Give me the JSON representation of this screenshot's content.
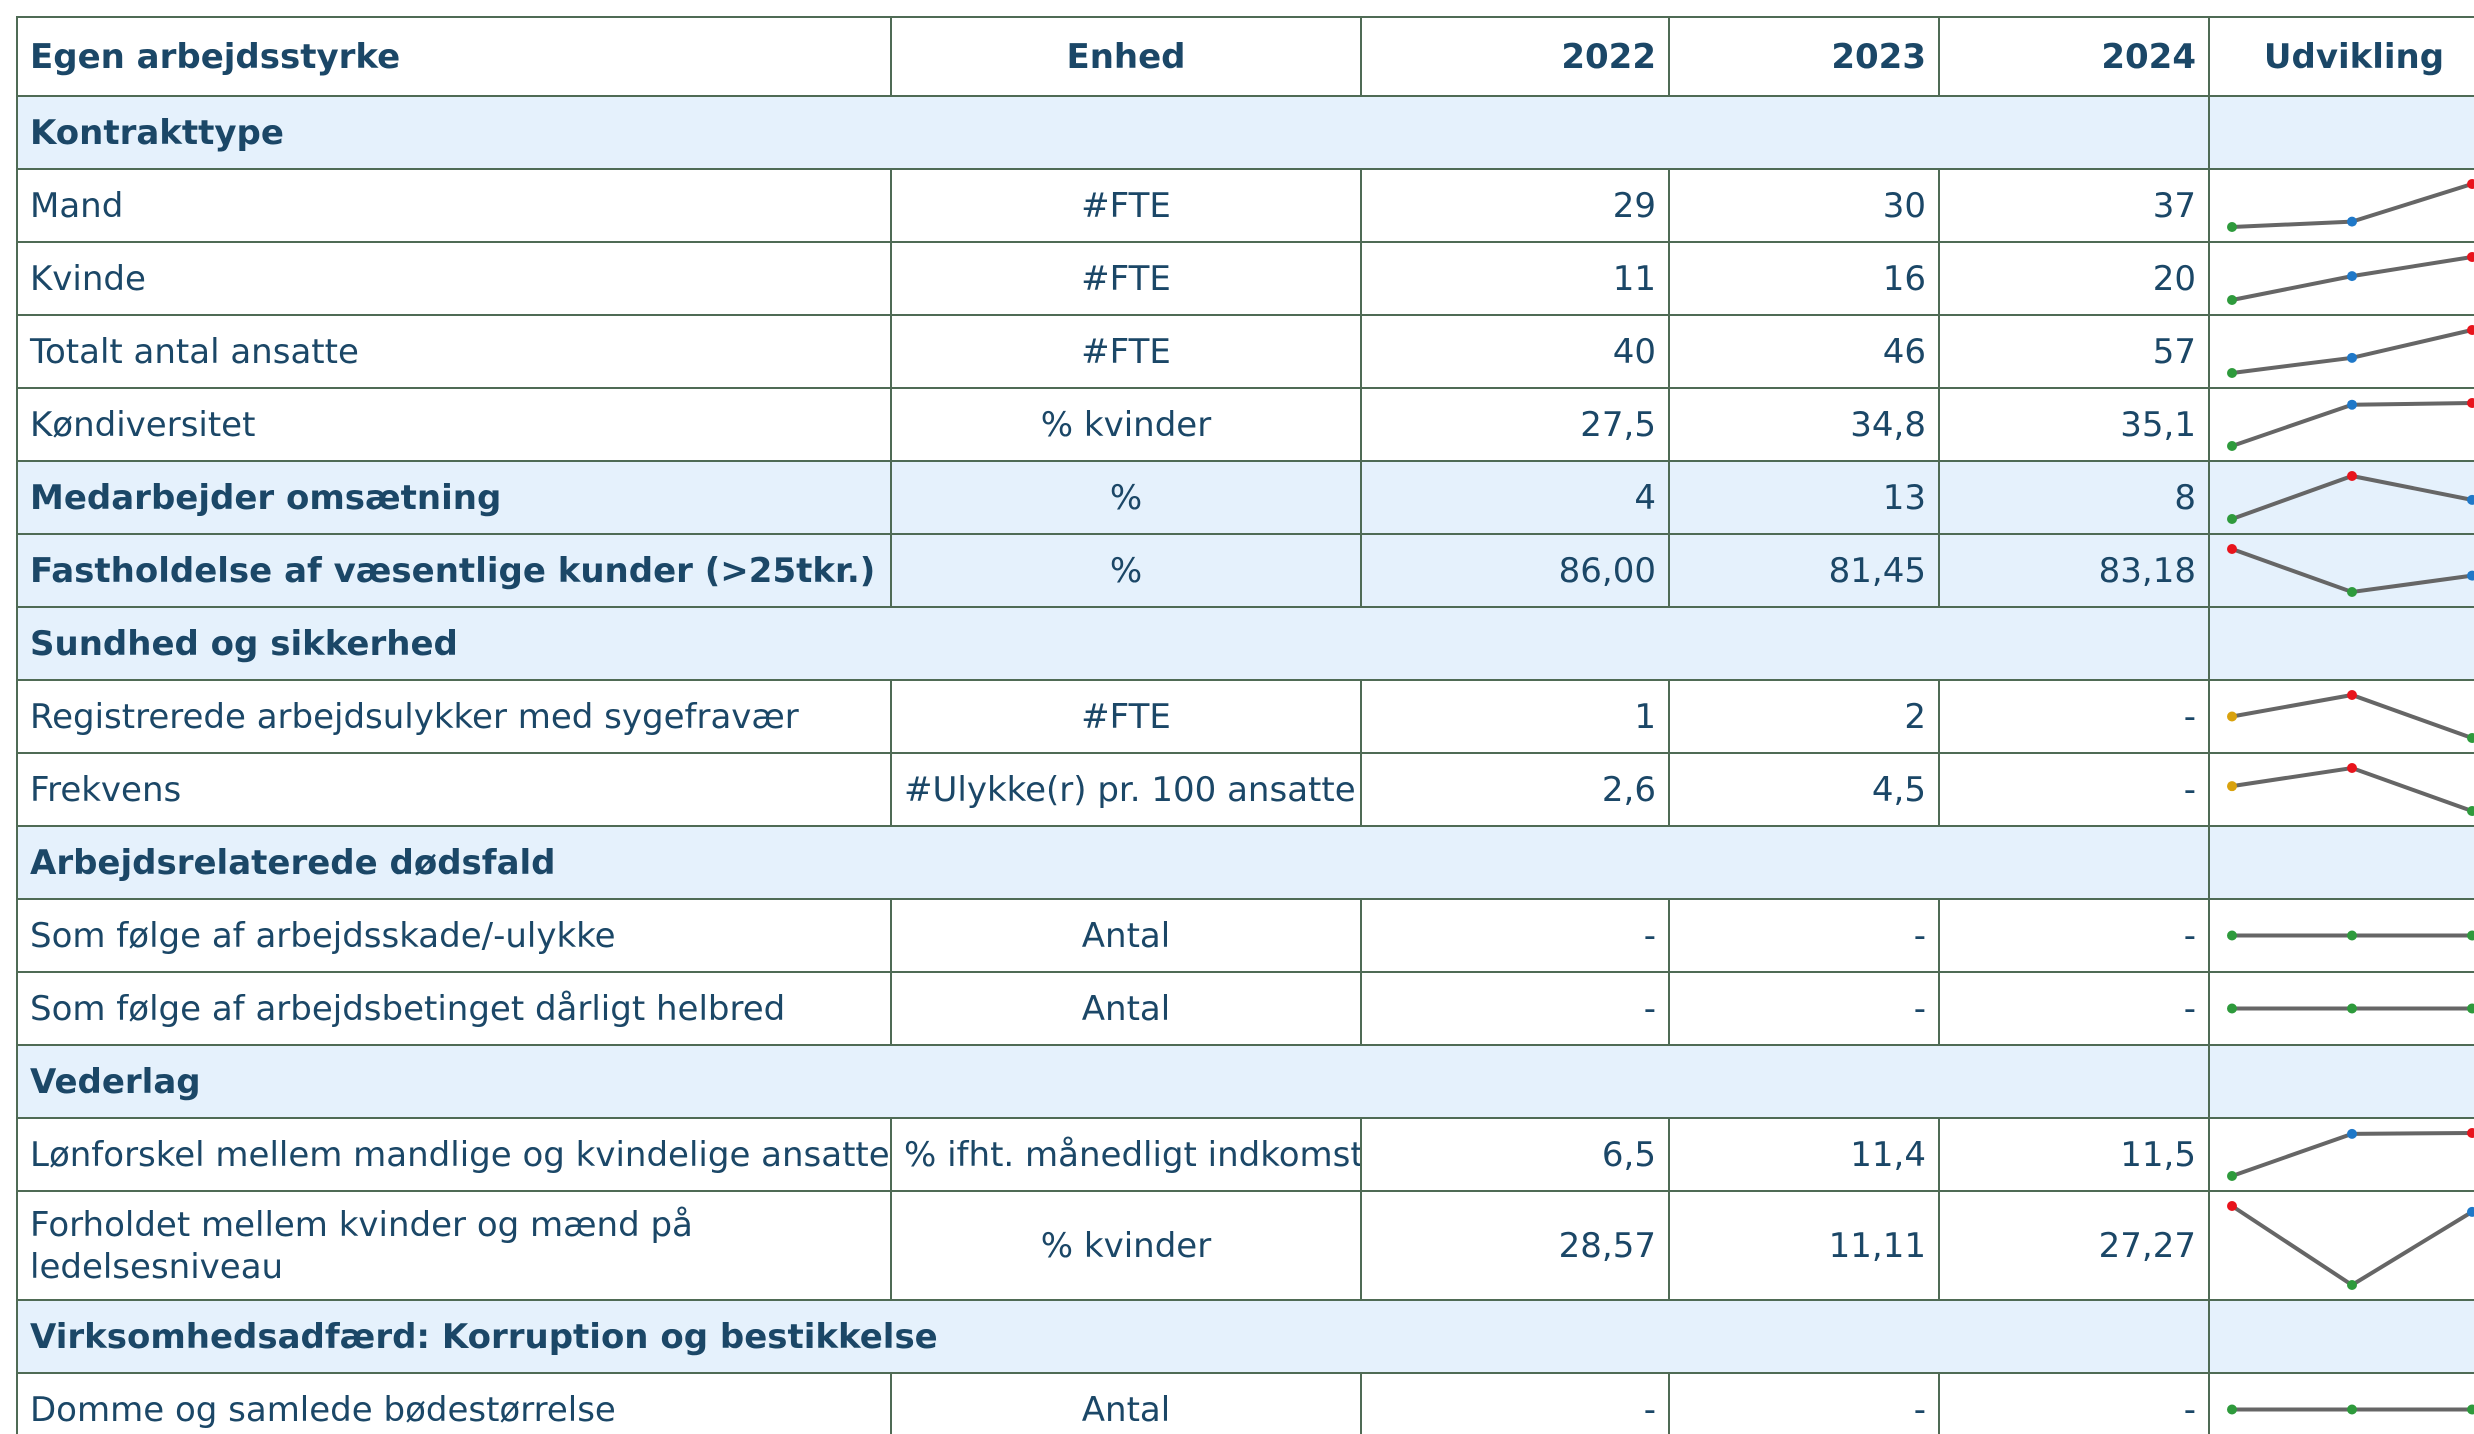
{
  "table": {
    "header": [
      "Egen arbejdsstyrke",
      "Enhed",
      "2022",
      "2023",
      "2024",
      "Udvikling"
    ],
    "rows": [
      {
        "section": "Kontrakttype"
      },
      {
        "label": "Mand",
        "unit": "#FTE",
        "values": [
          "29",
          "30",
          "37"
        ]
      },
      {
        "label": "Kvinde",
        "unit": "#FTE",
        "values": [
          "11",
          "16",
          "20"
        ]
      },
      {
        "label": "Totalt antal ansatte",
        "unit": "#FTE",
        "values": [
          "40",
          "46",
          "57"
        ]
      },
      {
        "label": "Køndiversitet",
        "unit": "% kvinder",
        "values": [
          "27,5",
          "34,8",
          "35,1"
        ]
      },
      {
        "label": "Medarbejder omsætning",
        "unit": "%",
        "values": [
          "4",
          "13",
          "8"
        ],
        "bold": true
      },
      {
        "label": "Fastholdelse af væsentlige kunder (>25tkr.)",
        "unit": "%",
        "values": [
          "86,00",
          "81,45",
          "83,18"
        ],
        "bold": true
      },
      {
        "section": "Sundhed og sikkerhed"
      },
      {
        "label": "Registrerede arbejdsulykker med sygefravær",
        "unit": "#FTE",
        "values": [
          "1",
          "2",
          "-"
        ]
      },
      {
        "label": "Frekvens",
        "unit": "#Ulykke(r) pr. 100 ansatte",
        "values": [
          "2,6",
          "4,5",
          "-"
        ]
      },
      {
        "section": "Arbejdsrelaterede dødsfald"
      },
      {
        "label": "Som følge af arbejdsskade/-ulykke",
        "unit": "Antal",
        "values": [
          "-",
          "-",
          "-"
        ]
      },
      {
        "label": "Som følge af arbejdsbetinget dårligt helbred",
        "unit": "Antal",
        "values": [
          "-",
          "-",
          "-"
        ]
      },
      {
        "section": "Vederlag"
      },
      {
        "label": "Lønforskel mellem mandlige og kvindelige ansatte",
        "unit": "% ifht. månedligt indkomst",
        "values": [
          "6,5",
          "11,4",
          "11,5"
        ]
      },
      {
        "label": "Forholdet mellem kvinder og mænd på ledelsesniveau",
        "unit": "% kvinder",
        "values": [
          "28,57",
          "11,11",
          "27,27"
        ],
        "tall": true
      },
      {
        "section": "Virksomhedsadfærd: Korruption og bestikkelse"
      },
      {
        "label": "Domme og samlede bødestørrelse",
        "unit": "Antal",
        "values": [
          "-",
          "-",
          "-"
        ]
      }
    ]
  }
}
